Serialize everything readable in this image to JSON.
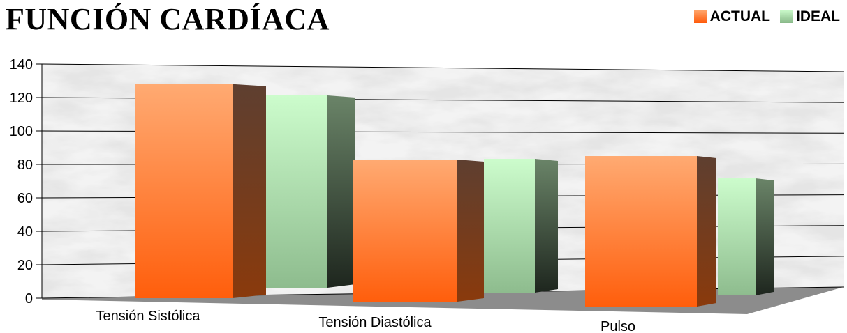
{
  "chart_data": {
    "type": "bar",
    "title": "FUNCIÓN CARDÍACA",
    "categories": [
      "Tensión Sistólica",
      "Tensión Diastólica",
      "Pulso"
    ],
    "series": [
      {
        "name": "ACTUAL",
        "values": [
          128,
          85,
          90
        ],
        "color": "#ff6a1a"
      },
      {
        "name": "IDEAL",
        "values": [
          115,
          80,
          70
        ],
        "color": "#a8dca8"
      }
    ],
    "ylim": [
      0,
      140
    ],
    "yticks": [
      0,
      20,
      40,
      60,
      80,
      100,
      120,
      140
    ],
    "grid": true,
    "legend_position": "top-right",
    "three_d": true
  }
}
